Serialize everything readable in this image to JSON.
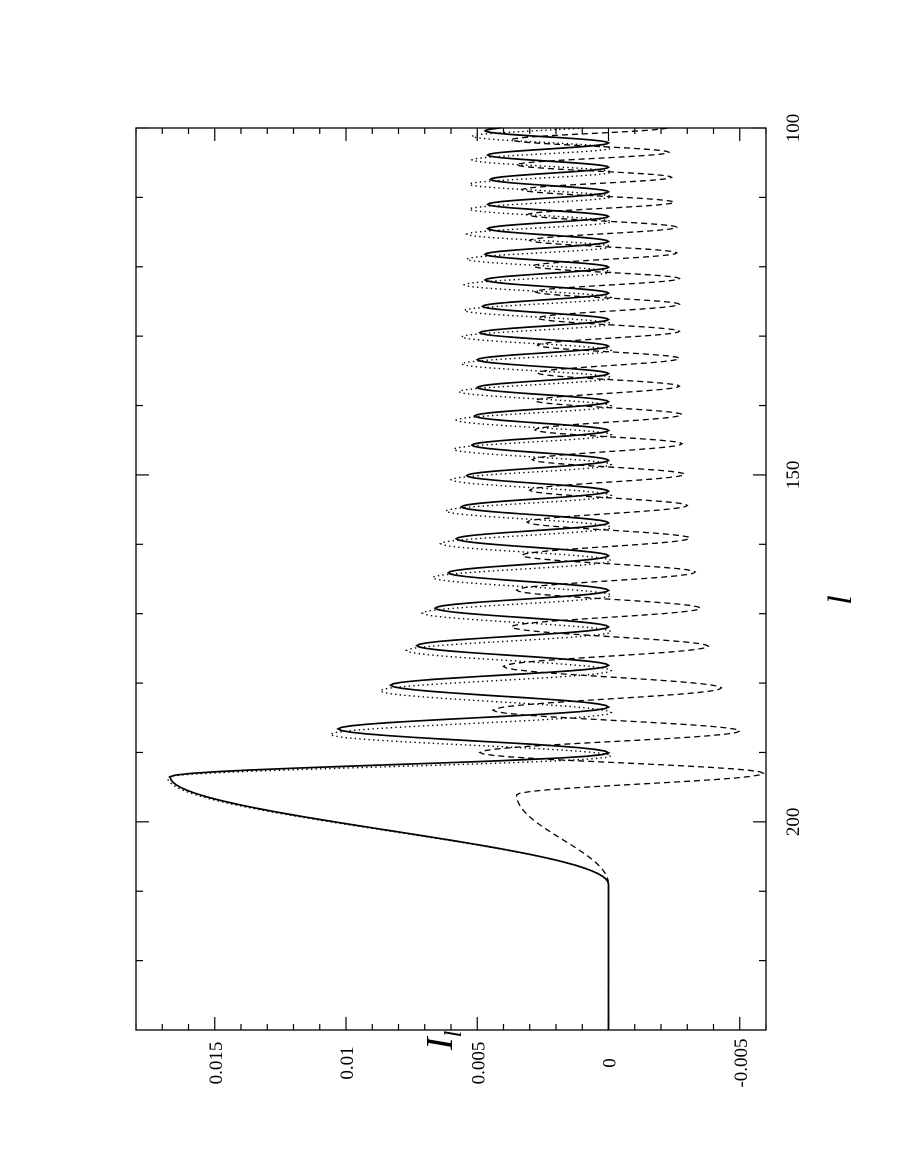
{
  "chart_data": {
    "type": "line",
    "orientation": "rotated-90-ccw",
    "title": "",
    "xlabel": "l",
    "ylabel": "I",
    "ylabel_subscript": "l",
    "xlim": [
      100,
      230
    ],
    "ylim": [
      -0.006,
      0.018
    ],
    "x_major_ticks": [
      100,
      150,
      200
    ],
    "x_minor_ticks": [
      110,
      120,
      130,
      140,
      160,
      170,
      180,
      190,
      210,
      220
    ],
    "y_major_ticks": [
      -0.005,
      0,
      0.005,
      0.01,
      0.015
    ],
    "x_tick_labels": [
      "100",
      "150",
      "200"
    ],
    "y_tick_labels": [
      "-0.005",
      "0",
      "0.005",
      "0.01",
      "0.015"
    ],
    "grid": false,
    "legend": "none",
    "series": [
      {
        "style": "solid",
        "peak_x": [
          100.4,
          103.9,
          107.4,
          111.0,
          114.5,
          118.2,
          121.9,
          125.7,
          129.5,
          133.4,
          137.4,
          141.5,
          145.7,
          150.1,
          154.6,
          159.2,
          164.1,
          169.2,
          174.6,
          180.3,
          186.6,
          193.5
        ],
        "peak_y": [
          0.0047,
          0.0046,
          0.0045,
          0.0046,
          0.0046,
          0.0047,
          0.0047,
          0.0048,
          0.0049,
          0.005,
          0.005,
          0.0051,
          0.0052,
          0.0054,
          0.0056,
          0.0058,
          0.0061,
          0.0066,
          0.0073,
          0.0083,
          0.0103,
          0.0167
        ],
        "trough_y": 0.0,
        "tail": {
          "start_x": 193.5,
          "zero_x": 209,
          "end_x": 230,
          "end_y": 0.0
        }
      },
      {
        "style": "dotted",
        "peak_x": [
          101.2,
          104.6,
          108.1,
          111.7,
          115.3,
          118.9,
          122.6,
          126.3,
          130.1,
          134.0,
          138.0,
          142.1,
          146.3,
          150.7,
          155.2,
          159.9,
          164.8,
          169.9,
          175.3,
          181.1,
          187.4,
          193.6
        ],
        "peak_y": [
          0.0052,
          0.0052,
          0.0053,
          0.0053,
          0.0054,
          0.0054,
          0.0055,
          0.0055,
          0.0056,
          0.0056,
          0.0057,
          0.0058,
          0.0059,
          0.006,
          0.0062,
          0.0064,
          0.0067,
          0.0071,
          0.0077,
          0.0087,
          0.0106,
          0.0168
        ],
        "trough_y": -0.0001,
        "tail": {
          "start_x": 193.6,
          "zero_x": 209,
          "end_x": 230,
          "end_y": 0.0
        }
      },
      {
        "style": "dashed",
        "peak_x": [
          101.7,
          105.3,
          108.9,
          112.5,
          116.2,
          119.9,
          123.6,
          127.4,
          131.3,
          135.3,
          139.3,
          143.5,
          147.8,
          152.2,
          156.8,
          161.6,
          166.6,
          171.9,
          177.6,
          183.9,
          190.0,
          196.1
        ],
        "peak_y": [
          0.0037,
          0.0035,
          0.0033,
          0.0031,
          0.003,
          0.0029,
          0.0028,
          0.0027,
          0.0027,
          0.0027,
          0.0028,
          0.0028,
          0.0029,
          0.003,
          0.0031,
          0.0033,
          0.0035,
          0.0037,
          0.004,
          0.0044,
          0.0049,
          0.0035
        ],
        "trough_x": [
          103.5,
          107.1,
          110.7,
          114.3,
          118.0,
          121.7,
          125.4,
          129.3,
          133.2,
          137.2,
          141.3,
          145.5,
          149.9,
          154.4,
          159.1,
          164.0,
          169.2,
          174.7,
          180.7,
          186.9,
          193.0
        ],
        "trough_y": [
          -0.0023,
          -0.0024,
          -0.0025,
          -0.0026,
          -0.0026,
          -0.0027,
          -0.0027,
          -0.0027,
          -0.0027,
          -0.0027,
          -0.0028,
          -0.0028,
          -0.0029,
          -0.003,
          -0.0031,
          -0.0033,
          -0.0035,
          -0.0038,
          -0.0043,
          -0.005,
          -0.0059
        ],
        "tail": {
          "start_x": 196.1,
          "zero_x": 209,
          "end_x": 230,
          "end_y": 0.0
        }
      }
    ]
  }
}
